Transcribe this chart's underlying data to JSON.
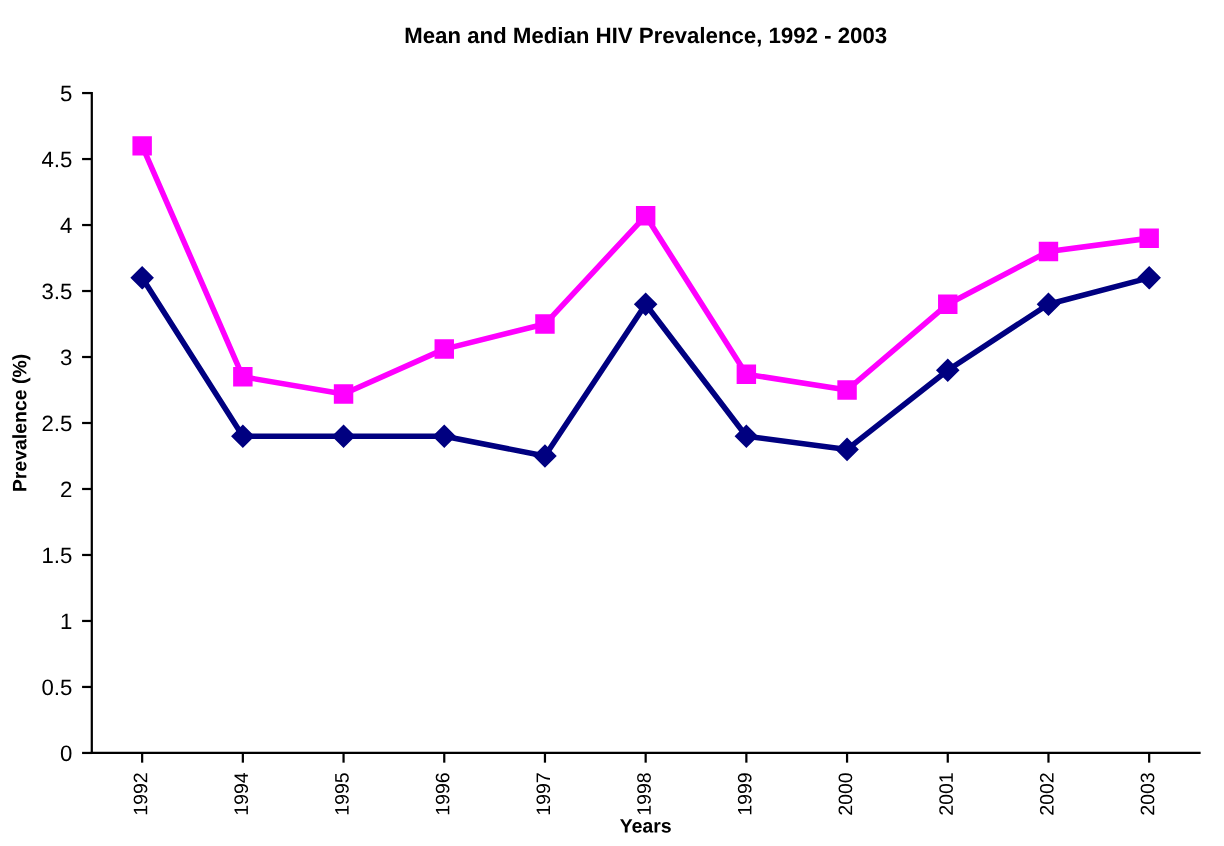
{
  "chart_data": {
    "type": "line",
    "title": "Mean and Median HIV Prevalence, 1992 - 2003",
    "xlabel": "Years",
    "ylabel": "Prevalence (%)",
    "categories": [
      "1992",
      "1994",
      "1995",
      "1996",
      "1997",
      "1998",
      "1999",
      "2000",
      "2001",
      "2002",
      "2003"
    ],
    "series": [
      {
        "color": "#ff00ff",
        "marker": "square",
        "values": [
          4.6,
          2.85,
          2.72,
          3.06,
          3.25,
          4.07,
          2.87,
          2.75,
          3.4,
          3.8,
          3.9
        ]
      },
      {
        "color": "#000080",
        "marker": "diamond",
        "values": [
          3.6,
          2.4,
          2.4,
          2.4,
          2.25,
          3.4,
          2.4,
          2.3,
          2.9,
          3.4,
          3.6
        ]
      }
    ],
    "ylim": [
      0,
      5
    ],
    "yticks": [
      0,
      0.5,
      1,
      1.5,
      2,
      2.5,
      3,
      3.5,
      4,
      4.5,
      5
    ],
    "grid": false,
    "legend": false
  }
}
